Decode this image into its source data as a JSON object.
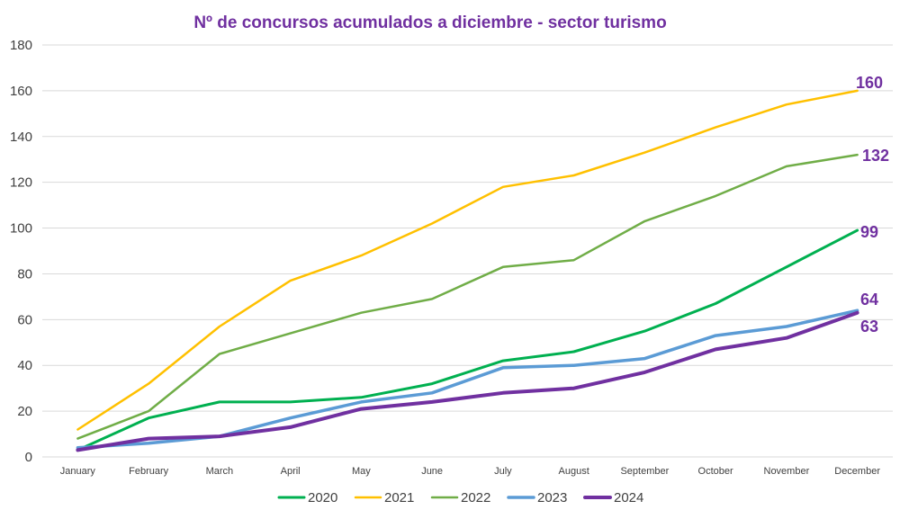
{
  "chart_data": {
    "type": "line",
    "title": "Nº de concursos acumulados a diciembre - sector turismo",
    "categories": [
      "January",
      "February",
      "March",
      "April",
      "May",
      "June",
      "July",
      "August",
      "September",
      "October",
      "November",
      "December"
    ],
    "ylim": [
      0,
      180
    ],
    "yticks": [
      0,
      20,
      40,
      60,
      80,
      100,
      120,
      140,
      160,
      180
    ],
    "grid": true,
    "legend": "bottom",
    "series": [
      {
        "name": "2020",
        "color": "#00B050",
        "values": [
          3,
          17,
          24,
          24,
          26,
          32,
          42,
          46,
          55,
          67,
          83,
          99
        ],
        "end_label": "99"
      },
      {
        "name": "2021",
        "color": "#FFC000",
        "values": [
          12,
          32,
          57,
          77,
          88,
          102,
          118,
          123,
          133,
          144,
          154,
          160
        ],
        "end_label": "160"
      },
      {
        "name": "2022",
        "color": "#70AD47",
        "values": [
          8,
          20,
          45,
          54,
          63,
          69,
          83,
          86,
          103,
          114,
          127,
          132
        ],
        "end_label": "132"
      },
      {
        "name": "2023",
        "color": "#5B9BD5",
        "values": [
          4,
          6,
          9,
          17,
          24,
          28,
          39,
          40,
          43,
          53,
          57,
          64
        ],
        "end_label": "64"
      },
      {
        "name": "2024",
        "color": "#7030A0",
        "values": [
          3,
          8,
          9,
          13,
          21,
          24,
          28,
          30,
          37,
          47,
          52,
          63
        ],
        "end_label": "63"
      }
    ]
  }
}
